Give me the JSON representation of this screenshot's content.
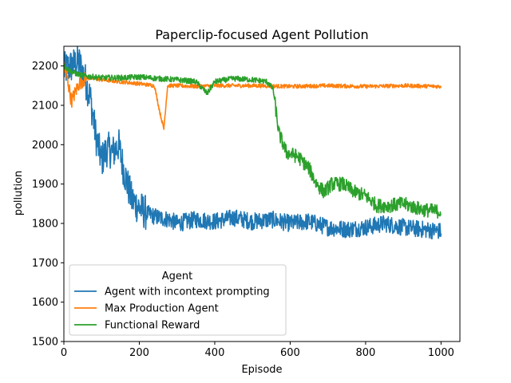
{
  "chart_data": {
    "type": "line",
    "title": "Paperclip-focused Agent Pollution",
    "xlabel": "Episode",
    "ylabel": "pollution",
    "xlim": [
      0,
      1050
    ],
    "ylim": [
      1500,
      2250
    ],
    "xticks": [
      0,
      200,
      400,
      600,
      800,
      1000
    ],
    "yticks": [
      1500,
      1600,
      1700,
      1800,
      1900,
      2000,
      2100,
      2200
    ],
    "grid": false,
    "legend": {
      "title": "Agent",
      "placement": "lower-left"
    },
    "series": [
      {
        "name": "Agent with incontext prompting",
        "color": "#1f77b4",
        "x": [
          0,
          20,
          40,
          55,
          70,
          85,
          100,
          115,
          130,
          145,
          160,
          180,
          200,
          220,
          250,
          280,
          300,
          350,
          400,
          450,
          500,
          550,
          600,
          650,
          700,
          750,
          800,
          850,
          900,
          950,
          1000
        ],
        "y": [
          2190,
          2200,
          2210,
          2170,
          2120,
          2020,
          1960,
          1990,
          1980,
          2000,
          1930,
          1860,
          1840,
          1825,
          1815,
          1810,
          1800,
          1810,
          1805,
          1815,
          1805,
          1810,
          1800,
          1805,
          1790,
          1785,
          1790,
          1800,
          1790,
          1785,
          1780
        ]
      },
      {
        "name": "Max Production Agent",
        "color": "#ff7f0e",
        "x": [
          0,
          10,
          20,
          40,
          60,
          100,
          150,
          200,
          240,
          255,
          265,
          275,
          300,
          350,
          400,
          500,
          600,
          700,
          800,
          900,
          1000
        ],
        "y": [
          2200,
          2165,
          2110,
          2155,
          2170,
          2165,
          2160,
          2155,
          2150,
          2080,
          2040,
          2150,
          2150,
          2148,
          2150,
          2150,
          2148,
          2150,
          2148,
          2150,
          2148
        ]
      },
      {
        "name": "Functional Reward",
        "color": "#2ca02c",
        "x": [
          0,
          20,
          50,
          100,
          150,
          200,
          250,
          300,
          350,
          380,
          400,
          450,
          500,
          540,
          555,
          570,
          590,
          620,
          650,
          670,
          690,
          710,
          740,
          770,
          800,
          830,
          860,
          900,
          950,
          1000
        ],
        "y": [
          2200,
          2185,
          2175,
          2170,
          2170,
          2172,
          2168,
          2165,
          2160,
          2130,
          2160,
          2168,
          2165,
          2160,
          2140,
          2030,
          1980,
          1970,
          1940,
          1900,
          1880,
          1900,
          1900,
          1880,
          1870,
          1845,
          1845,
          1850,
          1835,
          1830
        ]
      }
    ]
  }
}
